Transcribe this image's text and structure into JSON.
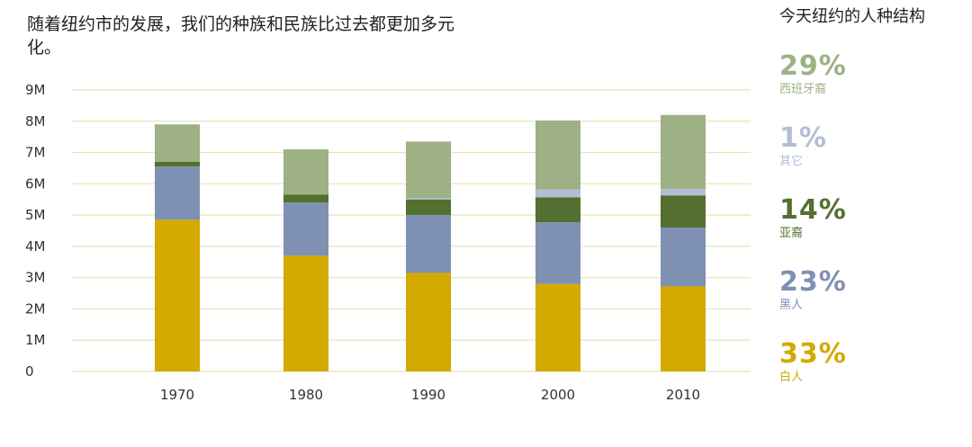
{
  "chart_data": {
    "type": "bar",
    "stacked": true,
    "title": "随着纽约市的发展，我们的种族和民族比过去都更加多元化。",
    "xlabel": "",
    "ylabel": "",
    "ylim": [
      0,
      9
    ],
    "y_ticks": [
      {
        "value": 0,
        "label": "0"
      },
      {
        "value": 1,
        "label": "1M"
      },
      {
        "value": 2,
        "label": "2M"
      },
      {
        "value": 3,
        "label": "3M"
      },
      {
        "value": 4,
        "label": "4M"
      },
      {
        "value": 5,
        "label": "5M"
      },
      {
        "value": 6,
        "label": "6M"
      },
      {
        "value": 7,
        "label": "7M"
      },
      {
        "value": 8,
        "label": "8M"
      },
      {
        "value": 9,
        "label": "9M"
      }
    ],
    "grid": true,
    "categories": [
      "1970",
      "1980",
      "1990",
      "2000",
      "2010"
    ],
    "series": [
      {
        "name": "白人",
        "color": "#d4a900",
        "values": [
          4.85,
          3.7,
          3.15,
          2.8,
          2.72
        ]
      },
      {
        "name": "黑人",
        "color": "#7f91b3",
        "values": [
          1.7,
          1.7,
          1.85,
          1.97,
          1.88
        ]
      },
      {
        "name": "亚裔",
        "color": "#537030",
        "values": [
          0.15,
          0.25,
          0.5,
          0.8,
          1.03
        ]
      },
      {
        "name": "其它",
        "color": "#b3bdd4",
        "values": [
          0.0,
          0.0,
          0.05,
          0.25,
          0.2
        ]
      },
      {
        "name": "西班牙裔",
        "color": "#9db185",
        "values": [
          1.2,
          1.45,
          1.8,
          2.2,
          2.37
        ]
      }
    ],
    "legend": {
      "title": "今天纽约的人种结构",
      "placement": "right",
      "entries": [
        {
          "pct": "29%",
          "label": "西班牙裔",
          "color": "#9db185"
        },
        {
          "pct": "1%",
          "label": "其它",
          "color": "#b3bdd4"
        },
        {
          "pct": "14%",
          "label": "亚裔",
          "color": "#537030"
        },
        {
          "pct": "23%",
          "label": "黑人",
          "color": "#7f91b3"
        },
        {
          "pct": "33%",
          "label": "白人",
          "color": "#d4a900"
        }
      ]
    },
    "grid_color": "#dfe8b8"
  }
}
